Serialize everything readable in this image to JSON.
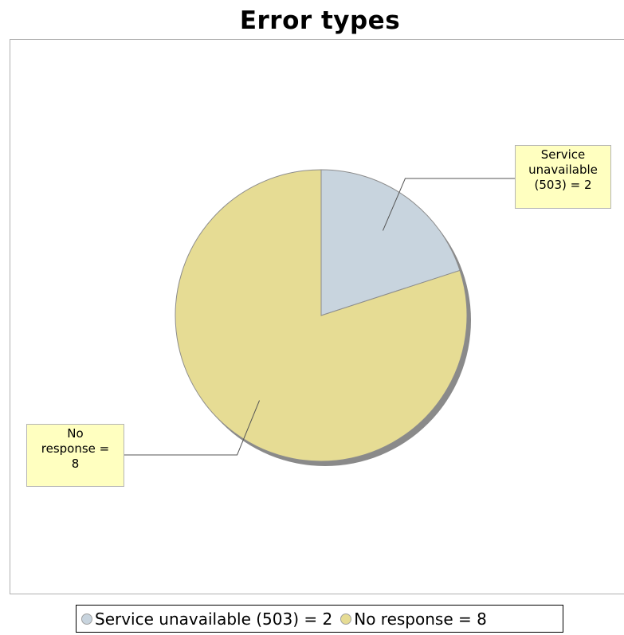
{
  "chart_data": {
    "type": "pie",
    "title": "Error types",
    "categories": [
      "Service unavailable (503)",
      "No response"
    ],
    "values": [
      2,
      8
    ],
    "colors": [
      "#c8d4de",
      "#e6dc94"
    ],
    "data_labels": [
      "Service\nunavailable\n(503) = 2",
      "No\nresponse =\n8"
    ],
    "legend": {
      "placement": "bottom",
      "items": [
        "Service unavailable (503) = 2",
        "No response = 8"
      ]
    }
  }
}
